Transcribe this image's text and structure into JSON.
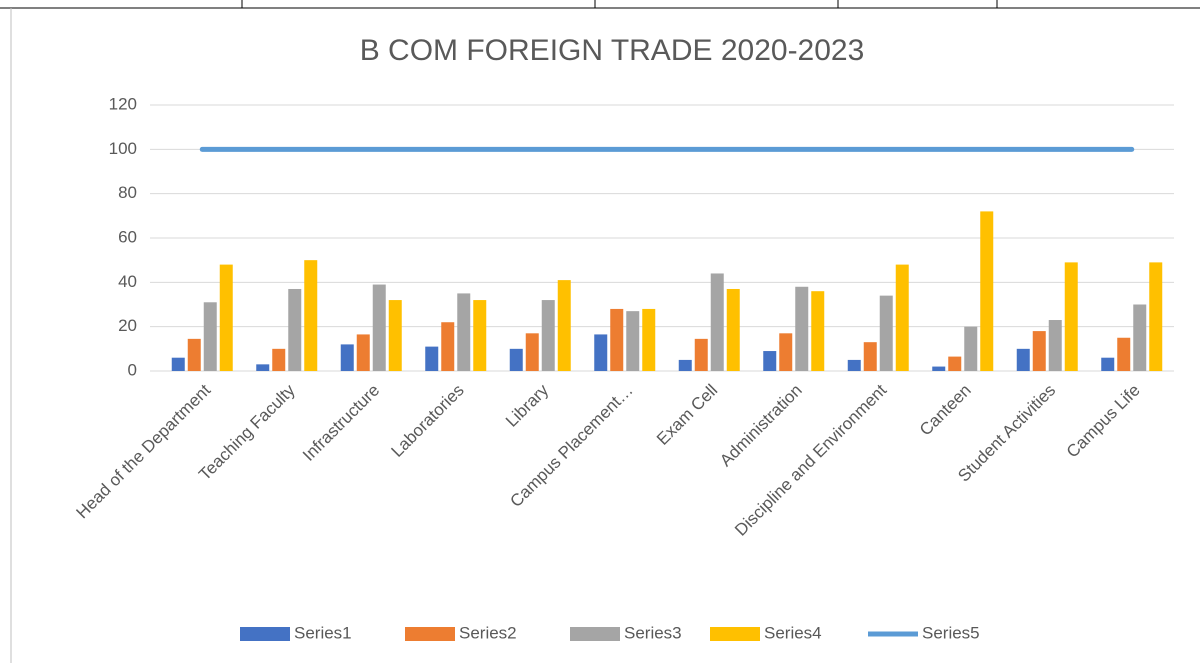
{
  "chart_data": {
    "type": "bar",
    "title": "B COM FOREIGN TRADE 2020-2023",
    "categories": [
      "Head of the Department",
      "Teaching Faculty",
      "Infrastructure",
      "Laboratories",
      "Library",
      "Campus Placement…",
      "Exam Cell",
      "Administration",
      "Discipline and Environment",
      "Canteen",
      "Student Activities",
      "Campus Life"
    ],
    "series": [
      {
        "name": "Series1",
        "color": "#4472c4",
        "values": [
          6,
          3,
          12,
          11,
          10,
          16.5,
          5,
          9,
          5,
          2,
          10,
          6
        ]
      },
      {
        "name": "Series2",
        "color": "#ed7d31",
        "values": [
          14.5,
          10,
          16.5,
          22,
          17,
          28,
          14.5,
          17,
          13,
          6.5,
          18,
          15
        ]
      },
      {
        "name": "Series3",
        "color": "#a5a5a5",
        "values": [
          31,
          37,
          39,
          35,
          32,
          27,
          44,
          38,
          34,
          20,
          23,
          30
        ]
      },
      {
        "name": "Series4",
        "color": "#ffc000",
        "values": [
          48,
          50,
          32,
          32,
          41,
          28,
          37,
          36,
          48,
          72,
          49,
          49
        ]
      },
      {
        "name": "Series5",
        "color": "#5b9bd5",
        "type": "line",
        "values": [
          100,
          100,
          100,
          100,
          100,
          100,
          100,
          100,
          100,
          100,
          100,
          100
        ]
      }
    ],
    "ylim": [
      0,
      120
    ],
    "yticks": [
      0,
      20,
      40,
      60,
      80,
      100,
      120
    ],
    "grid": true,
    "legend": "bottom"
  }
}
